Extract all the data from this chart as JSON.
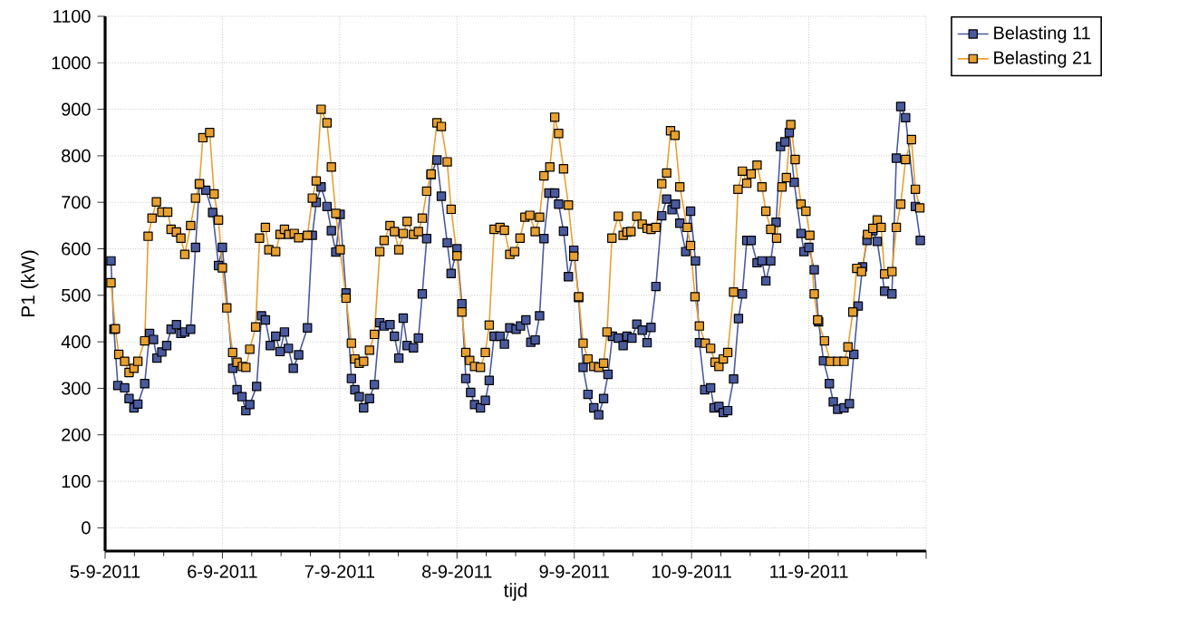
{
  "chart_data": {
    "type": "line",
    "xlabel": "tijd",
    "ylabel": "P1 (kW)",
    "xlim": [
      "2011-09-05",
      "2011-09-12"
    ],
    "xticks": [
      {
        "value": "2011-09-05",
        "label": "5-9-2011"
      },
      {
        "value": "2011-09-06",
        "label": "6-9-2011"
      },
      {
        "value": "2011-09-07",
        "label": "7-9-2011"
      },
      {
        "value": "2011-09-08",
        "label": "8-9-2011"
      },
      {
        "value": "2011-09-09",
        "label": "9-9-2011"
      },
      {
        "value": "2011-09-10",
        "label": "10-9-2011"
      },
      {
        "value": "2011-09-11",
        "label": "11-9-2011"
      },
      {
        "value": "2011-09-12",
        "label": null
      }
    ],
    "ylim": [
      -50,
      1100
    ],
    "yticks": [
      0,
      100,
      200,
      300,
      400,
      500,
      600,
      700,
      800,
      900,
      1000,
      1100
    ],
    "grid": true,
    "legend": "top right",
    "marker": "square",
    "line_style": "solid",
    "series": [
      {
        "name": "Belasting 11",
        "color": "#4a5a9e",
        "x": [
          "2011-09-05T01:12",
          "2011-09-05T01:48",
          "2011-09-05T02:36",
          "2011-09-05T04:00",
          "2011-09-05T04:54",
          "2011-09-05T05:54",
          "2011-09-05T06:42",
          "2011-09-05T08:06",
          "2011-09-05T09:06",
          "2011-09-05T09:54",
          "2011-09-05T10:36",
          "2011-09-05T11:36",
          "2011-09-05T12:36",
          "2011-09-05T13:30",
          "2011-09-05T14:36",
          "2011-09-05T15:30",
          "2011-09-05T16:18",
          "2011-09-05T17:30",
          "2011-09-05T18:30",
          "2011-09-05T19:18",
          "2011-09-05T20:36",
          "2011-09-05T22:00",
          "2011-09-05T23:12",
          "2011-09-06T00:00",
          "2011-09-06T02:06",
          "2011-09-06T03:00",
          "2011-09-06T04:00",
          "2011-09-06T04:48",
          "2011-09-06T05:36",
          "2011-09-06T07:00",
          "2011-09-06T08:00",
          "2011-09-06T08:48",
          "2011-09-06T09:48",
          "2011-09-06T10:54",
          "2011-09-06T11:48",
          "2011-09-06T12:42",
          "2011-09-06T13:30",
          "2011-09-06T14:30",
          "2011-09-06T15:36",
          "2011-09-06T17:24",
          "2011-09-06T18:24",
          "2011-09-06T19:12",
          "2011-09-06T20:12",
          "2011-09-06T21:24",
          "2011-09-06T22:18",
          "2011-09-06T23:12",
          "2011-09-07T00:06",
          "2011-09-07T01:18",
          "2011-09-07T02:24",
          "2011-09-07T03:06",
          "2011-09-07T04:00",
          "2011-09-07T04:54",
          "2011-09-07T06:06",
          "2011-09-07T07:06",
          "2011-09-07T08:12",
          "2011-09-07T09:06",
          "2011-09-07T10:18",
          "2011-09-07T11:12",
          "2011-09-07T12:06",
          "2011-09-07T13:00",
          "2011-09-07T13:48",
          "2011-09-07T15:06",
          "2011-09-07T16:06",
          "2011-09-07T16:54",
          "2011-09-07T17:48",
          "2011-09-07T18:42",
          "2011-09-07T19:54",
          "2011-09-07T20:48",
          "2011-09-07T22:00",
          "2011-09-07T22:48",
          "2011-09-08T00:00",
          "2011-09-08T01:00",
          "2011-09-08T01:48",
          "2011-09-08T02:48",
          "2011-09-08T03:36",
          "2011-09-08T04:48",
          "2011-09-08T05:48",
          "2011-09-08T06:36",
          "2011-09-08T07:36",
          "2011-09-08T08:48",
          "2011-09-08T09:42",
          "2011-09-08T10:48",
          "2011-09-08T12:06",
          "2011-09-08T13:00",
          "2011-09-08T14:06",
          "2011-09-08T15:06",
          "2011-09-08T16:00",
          "2011-09-08T16:54",
          "2011-09-08T17:48",
          "2011-09-08T18:48",
          "2011-09-08T20:00",
          "2011-09-08T20:48",
          "2011-09-08T21:48",
          "2011-09-08T22:48",
          "2011-09-08T23:54",
          "2011-09-09T00:54",
          "2011-09-09T01:48",
          "2011-09-09T02:48",
          "2011-09-09T04:00",
          "2011-09-09T05:00",
          "2011-09-09T06:00",
          "2011-09-09T06:54",
          "2011-09-09T07:48",
          "2011-09-09T09:00",
          "2011-09-09T10:00",
          "2011-09-09T10:48",
          "2011-09-09T11:48",
          "2011-09-09T12:48",
          "2011-09-09T13:54",
          "2011-09-09T14:54",
          "2011-09-09T15:42",
          "2011-09-09T16:42",
          "2011-09-09T17:54",
          "2011-09-09T18:54",
          "2011-09-09T20:00",
          "2011-09-09T20:42",
          "2011-09-09T21:36",
          "2011-09-09T22:48",
          "2011-09-09T23:48",
          "2011-09-10T00:48",
          "2011-09-10T01:36",
          "2011-09-10T02:42",
          "2011-09-10T03:54",
          "2011-09-10T04:36",
          "2011-09-10T05:36",
          "2011-09-10T06:30",
          "2011-09-10T07:24",
          "2011-09-10T08:36",
          "2011-09-10T09:36",
          "2011-09-10T10:24",
          "2011-09-10T11:18",
          "2011-09-10T12:12",
          "2011-09-10T13:24",
          "2011-09-10T14:24",
          "2011-09-10T15:12",
          "2011-09-10T16:12",
          "2011-09-10T17:18",
          "2011-09-10T18:12",
          "2011-09-10T19:06",
          "2011-09-10T20:00",
          "2011-09-10T21:00",
          "2011-09-10T22:24",
          "2011-09-10T23:00",
          "2011-09-11T00:00",
          "2011-09-11T01:06",
          "2011-09-11T02:00",
          "2011-09-11T03:00",
          "2011-09-11T04:12",
          "2011-09-11T05:00",
          "2011-09-11T05:54",
          "2011-09-11T07:12",
          "2011-09-11T08:18",
          "2011-09-11T09:12",
          "2011-09-11T10:06",
          "2011-09-11T11:00",
          "2011-09-11T11:54",
          "2011-09-11T13:06",
          "2011-09-11T14:00",
          "2011-09-11T15:30",
          "2011-09-11T17:00",
          "2011-09-11T17:54",
          "2011-09-11T18:48",
          "2011-09-11T19:48",
          "2011-09-11T21:48",
          "2011-09-11T22:48"
        ],
        "values": [
          574,
          427,
          306,
          301,
          278,
          258,
          266,
          310,
          418,
          405,
          365,
          378,
          392,
          427,
          437,
          418,
          421,
          427,
          603,
          739,
          726,
          678,
          564,
          603,
          343,
          297,
          282,
          252,
          265,
          304,
          456,
          447,
          392,
          412,
          379,
          421,
          386,
          343,
          372,
          430,
          629,
          700,
          733,
          691,
          639,
          593,
          674,
          505,
          321,
          297,
          282,
          258,
          278,
          308,
          441,
          434,
          437,
          412,
          365,
          451,
          392,
          387,
          408,
          503,
          622,
          759,
          791,
          713,
          613,
          547,
          600,
          482,
          321,
          291,
          265,
          258,
          274,
          317,
          412,
          412,
          395,
          430,
          427,
          434,
          447,
          399,
          404,
          456,
          622,
          720,
          720,
          696,
          638,
          540,
          597,
          495,
          345,
          287,
          258,
          243,
          278,
          330,
          412,
          408,
          392,
          412,
          408,
          438,
          425,
          398,
          431,
          519,
          671,
          707,
          684,
          696,
          655,
          594,
          681,
          574,
          398,
          297,
          301,
          258,
          261,
          248,
          252,
          320,
          450,
          503,
          618,
          618,
          570,
          574,
          531,
          574,
          657,
          820,
          830,
          850,
          743,
          633,
          594,
          603,
          555,
          443,
          359,
          310,
          271,
          255,
          258,
          267,
          373,
          477,
          561,
          618,
          639,
          616,
          509,
          503,
          795,
          906,
          882,
          691,
          618
        ]
      },
      {
        "name": "Belasting 21",
        "color": "#e8a030",
        "x": [
          "2011-09-05T01:12",
          "2011-09-05T02:06",
          "2011-09-05T02:48",
          "2011-09-05T04:00",
          "2011-09-05T04:54",
          "2011-09-05T05:54",
          "2011-09-05T06:42",
          "2011-09-05T08:06",
          "2011-09-05T08:48",
          "2011-09-05T09:36",
          "2011-09-05T10:30",
          "2011-09-05T11:36",
          "2011-09-05T12:48",
          "2011-09-05T13:30",
          "2011-09-05T14:36",
          "2011-09-05T15:30",
          "2011-09-05T16:18",
          "2011-09-05T17:30",
          "2011-09-05T18:30",
          "2011-09-05T19:18",
          "2011-09-05T20:00",
          "2011-09-05T21:24",
          "2011-09-05T22:18",
          "2011-09-05T23:12",
          "2011-09-06T00:00",
          "2011-09-06T00:54",
          "2011-09-06T02:06",
          "2011-09-06T03:00",
          "2011-09-06T04:06",
          "2011-09-06T04:48",
          "2011-09-06T05:36",
          "2011-09-06T06:48",
          "2011-09-06T07:36",
          "2011-09-06T08:48",
          "2011-09-06T09:30",
          "2011-09-06T10:54",
          "2011-09-06T11:48",
          "2011-09-06T12:42",
          "2011-09-06T13:36",
          "2011-09-06T14:42",
          "2011-09-06T15:36",
          "2011-09-06T17:24",
          "2011-09-06T18:24",
          "2011-09-06T19:12",
          "2011-09-06T20:12",
          "2011-09-06T21:24",
          "2011-09-06T22:18",
          "2011-09-06T23:12",
          "2011-09-07T00:06",
          "2011-09-07T01:18",
          "2011-09-07T02:24",
          "2011-09-07T03:06",
          "2011-09-07T04:00",
          "2011-09-07T04:54",
          "2011-09-07T06:06",
          "2011-09-07T07:06",
          "2011-09-07T08:12",
          "2011-09-07T09:06",
          "2011-09-07T10:18",
          "2011-09-07T11:12",
          "2011-09-07T12:06",
          "2011-09-07T13:00",
          "2011-09-07T13:48",
          "2011-09-07T15:06",
          "2011-09-07T16:06",
          "2011-09-07T16:54",
          "2011-09-07T17:48",
          "2011-09-07T18:42",
          "2011-09-07T19:54",
          "2011-09-07T20:48",
          "2011-09-07T22:00",
          "2011-09-07T22:48",
          "2011-09-08T00:00",
          "2011-09-08T01:00",
          "2011-09-08T01:48",
          "2011-09-08T02:36",
          "2011-09-08T03:36",
          "2011-09-08T04:48",
          "2011-09-08T05:48",
          "2011-09-08T06:36",
          "2011-09-08T07:36",
          "2011-09-08T08:48",
          "2011-09-08T09:42",
          "2011-09-08T10:48",
          "2011-09-08T11:48",
          "2011-09-08T12:54",
          "2011-09-08T13:54",
          "2011-09-08T14:54",
          "2011-09-08T16:00",
          "2011-09-08T16:54",
          "2011-09-08T17:48",
          "2011-09-08T19:00",
          "2011-09-08T20:00",
          "2011-09-08T20:48",
          "2011-09-08T21:48",
          "2011-09-08T22:48",
          "2011-09-08T23:54",
          "2011-09-09T00:54",
          "2011-09-09T01:48",
          "2011-09-09T02:48",
          "2011-09-09T04:00",
          "2011-09-09T05:00",
          "2011-09-09T06:00",
          "2011-09-09T06:42",
          "2011-09-09T07:42",
          "2011-09-09T09:00",
          "2011-09-09T10:00",
          "2011-09-09T10:48",
          "2011-09-09T11:36",
          "2011-09-09T12:48",
          "2011-09-09T13:54",
          "2011-09-09T14:54",
          "2011-09-09T15:42",
          "2011-09-09T16:42",
          "2011-09-09T17:54",
          "2011-09-09T18:54",
          "2011-09-09T19:42",
          "2011-09-09T20:36",
          "2011-09-09T21:36",
          "2011-09-09T23:06",
          "2011-09-09T23:48",
          "2011-09-10T00:42",
          "2011-09-10T01:36",
          "2011-09-10T02:48",
          "2011-09-10T03:54",
          "2011-09-10T04:48",
          "2011-09-10T05:36",
          "2011-09-10T06:30",
          "2011-09-10T07:24",
          "2011-09-10T08:36",
          "2011-09-10T09:30",
          "2011-09-10T10:24",
          "2011-09-10T11:18",
          "2011-09-10T12:12",
          "2011-09-10T13:24",
          "2011-09-10T14:24",
          "2011-09-10T15:12",
          "2011-09-10T16:12",
          "2011-09-10T17:24",
          "2011-09-10T18:30",
          "2011-09-10T19:24",
          "2011-09-10T20:18",
          "2011-09-10T21:12",
          "2011-09-10T22:24",
          "2011-09-10T23:24",
          "2011-09-11T00:12",
          "2011-09-11T01:06",
          "2011-09-11T01:48",
          "2011-09-11T03:12",
          "2011-09-11T04:24",
          "2011-09-11T05:54",
          "2011-09-11T07:12",
          "2011-09-11T08:00",
          "2011-09-11T09:00",
          "2011-09-11T09:48",
          "2011-09-11T10:48",
          "2011-09-11T12:00",
          "2011-09-11T13:06",
          "2011-09-11T14:00",
          "2011-09-11T14:48",
          "2011-09-11T15:30",
          "2011-09-11T17:00",
          "2011-09-11T17:54",
          "2011-09-11T18:48",
          "2011-09-11T19:48",
          "2011-09-11T21:00",
          "2011-09-11T21:48",
          "2011-09-11T22:42"
        ],
        "values": [
          527,
          428,
          373,
          358,
          334,
          343,
          358,
          402,
          627,
          666,
          701,
          679,
          679,
          642,
          636,
          623,
          588,
          650,
          709,
          740,
          839,
          850,
          718,
          662,
          559,
          473,
          377,
          356,
          347,
          345,
          384,
          432,
          623,
          646,
          598,
          594,
          631,
          642,
          631,
          633,
          624,
          629,
          709,
          746,
          900,
          871,
          776,
          676,
          598,
          494,
          397,
          363,
          354,
          358,
          382,
          416,
          594,
          618,
          650,
          637,
          598,
          633,
          659,
          631,
          637,
          666,
          724,
          761,
          871,
          863,
          787,
          685,
          585,
          464,
          377,
          360,
          347,
          345,
          377,
          436,
          642,
          646,
          640,
          588,
          594,
          623,
          668,
          672,
          637,
          668,
          757,
          776,
          883,
          848,
          772,
          694,
          584,
          497,
          397,
          363,
          347,
          345,
          354,
          421,
          623,
          670,
          629,
          636,
          637,
          670,
          653,
          644,
          642,
          646,
          740,
          763,
          854,
          844,
          733,
          646,
          607,
          497,
          434,
          397,
          386,
          356,
          347,
          363,
          377,
          507,
          728,
          767,
          741,
          761,
          780,
          733,
          681,
          642,
          623,
          733,
          753,
          867,
          792,
          696,
          681,
          629,
          503,
          447,
          402,
          358,
          358,
          358,
          389,
          464,
          558,
          551,
          631,
          644,
          662,
          646,
          546,
          551,
          646,
          696,
          792,
          835,
          728,
          688
        ]
      }
    ]
  }
}
